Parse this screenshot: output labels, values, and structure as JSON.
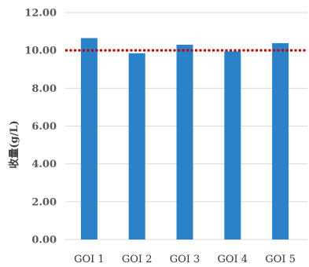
{
  "chart_data": {
    "type": "bar",
    "categories": [
      "GOI 1",
      "GOI 2",
      "GOI 3",
      "GOI 4",
      "GOI 5"
    ],
    "values": [
      10.65,
      9.85,
      10.3,
      9.95,
      10.38
    ],
    "xlabel": "",
    "ylabel": "收量(g/L)",
    "ylim": [
      0,
      12
    ],
    "yticks": [
      0,
      2,
      4,
      6,
      8,
      10,
      12
    ],
    "ytick_labels": [
      "0.00",
      "2.00",
      "4.00",
      "6.00",
      "8.00",
      "10.00",
      "12.00"
    ],
    "reference_line": {
      "value": 10.0,
      "style": "dotted",
      "color": "#C00000"
    },
    "grid": true,
    "bar_color": "#2C82C9",
    "gridline_color": "#D9D9D9"
  }
}
